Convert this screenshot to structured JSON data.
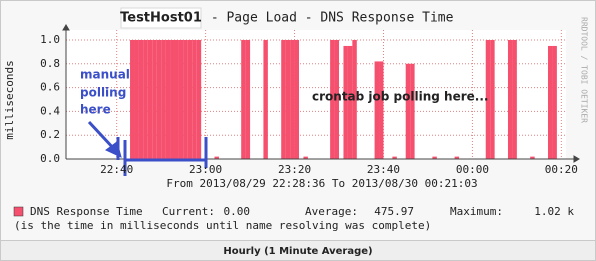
{
  "chart_data": {
    "type": "bar",
    "title": "TestHost01",
    "subtitle": " - Page Load - DNS Response Time",
    "y_label": "milliseconds",
    "watermark": "RRDTOOL / TOBI OETIKER",
    "time_range": "From 2013/08/29 22:28:36 To 2013/08/30 00:21:03",
    "xlim": [
      "2013/08/29 22:28:36",
      "2013/08/30 00:21:03"
    ],
    "xticks": [
      {
        "value": "2013/08/29 22:40",
        "label": "22:40"
      },
      {
        "value": "2013/08/29 23:00",
        "label": "23:00"
      },
      {
        "value": "2013/08/29 23:20",
        "label": "23:20"
      },
      {
        "value": "2013/08/29 23:40",
        "label": "23:40"
      },
      {
        "value": "2013/08/30 00:00",
        "label": "00:00"
      },
      {
        "value": "2013/08/30 00:20",
        "label": "00:20"
      }
    ],
    "ylim": [
      0,
      1.0
    ],
    "yticks": [
      {
        "value": 0,
        "label": "0.0"
      },
      0.2,
      0.4,
      0.6,
      0.8,
      {
        "value": 1.0,
        "label": "1.0"
      }
    ],
    "grid": true,
    "series": [
      {
        "name": "DNS Response Time",
        "color": "#f5506e",
        "x": [
          "2013/08/29 22:44",
          "2013/08/29 22:45",
          "2013/08/29 22:46",
          "2013/08/29 22:47",
          "2013/08/29 22:48",
          "2013/08/29 22:49",
          "2013/08/29 22:50",
          "2013/08/29 22:51",
          "2013/08/29 22:52",
          "2013/08/29 22:53",
          "2013/08/29 22:54",
          "2013/08/29 22:55",
          "2013/08/29 22:56",
          "2013/08/29 22:57",
          "2013/08/29 22:58",
          "2013/08/29 22:59",
          "2013/08/29 23:03",
          "2013/08/29 23:09",
          "2013/08/29 23:10",
          "2013/08/29 23:14",
          "2013/08/29 23:18",
          "2013/08/29 23:19",
          "2013/08/29 23:20",
          "2013/08/29 23:21",
          "2013/08/29 23:23",
          "2013/08/29 23:29",
          "2013/08/29 23:30",
          "2013/08/29 23:32",
          "2013/08/29 23:33",
          "2013/08/29 23:34",
          "2013/08/29 23:39",
          "2013/08/29 23:40",
          "2013/08/29 23:43",
          "2013/08/29 23:46",
          "2013/08/29 23:47",
          "2013/08/29 23:52",
          "2013/08/29 23:57",
          "2013/08/30 00:04",
          "2013/08/30 00:05",
          "2013/08/30 00:09",
          "2013/08/30 00:10",
          "2013/08/30 00:14",
          "2013/08/30 00:18",
          "2013/08/30 00:19"
        ],
        "values": [
          1.0,
          1.0,
          1.0,
          1.0,
          1.0,
          1.0,
          1.0,
          1.0,
          1.0,
          1.0,
          1.0,
          1.0,
          1.0,
          1.0,
          1.0,
          1.0,
          0.02,
          1.0,
          1.0,
          1.0,
          1.0,
          1.0,
          1.0,
          1.0,
          0.02,
          1.0,
          1.0,
          0.95,
          0.95,
          1.0,
          0.82,
          0.82,
          0.02,
          0.8,
          0.8,
          0.02,
          0.02,
          1.0,
          1.0,
          1.0,
          1.0,
          0.02,
          0.95,
          0.95
        ]
      }
    ],
    "legend": {
      "current_label": "Current:",
      "current": "0.00",
      "average_label": "Average:",
      "average": "475.97",
      "maximum_label": "Maximum:",
      "maximum": "1.02 k"
    },
    "comment": "(is the time in milliseconds until name resolving was complete)",
    "footer": "Hourly (1 Minute Average)",
    "annotations": {
      "manual": [
        "manual",
        "polling",
        "here"
      ],
      "crontab": "crontab job polling here..."
    }
  }
}
